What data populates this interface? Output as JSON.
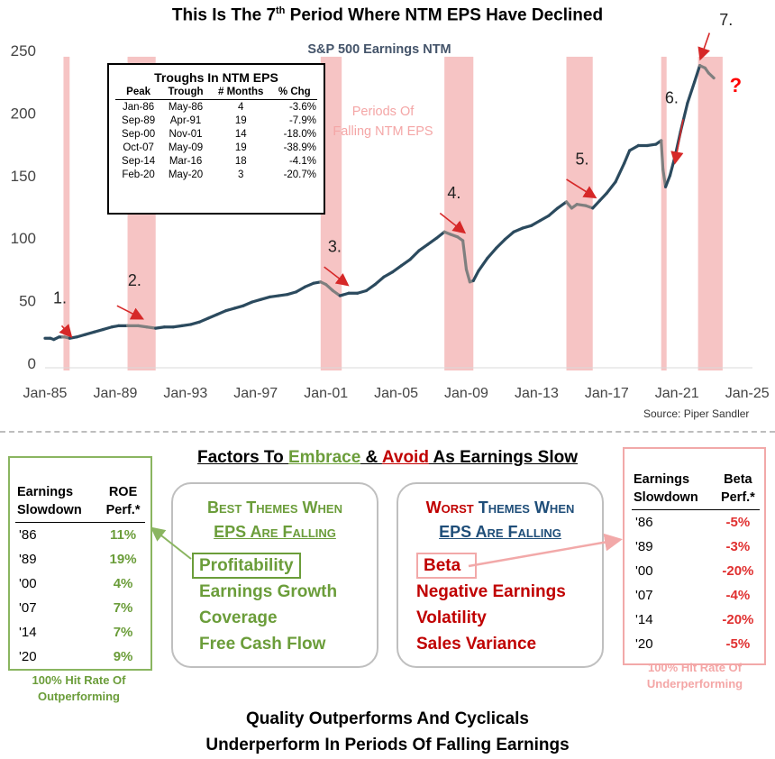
{
  "title_pre": "This Is The 7",
  "title_sup": "th",
  "title_post": " Period Where NTM EPS Have Declined",
  "chart_data": {
    "type": "line",
    "series_name": "S&P 500 Earnings NTM",
    "xlim": [
      1985.0,
      2025.3
    ],
    "ylim": [
      0,
      250
    ],
    "yticks": [
      0,
      50,
      100,
      150,
      200,
      250
    ],
    "xticks": [
      {
        "label": "Jan-85",
        "x": 1985
      },
      {
        "label": "Jan-89",
        "x": 1989
      },
      {
        "label": "Jan-93",
        "x": 1993
      },
      {
        "label": "Jan-97",
        "x": 1997
      },
      {
        "label": "Jan-01",
        "x": 2001
      },
      {
        "label": "Jan-05",
        "x": 2005
      },
      {
        "label": "Jan-09",
        "x": 2009
      },
      {
        "label": "Jan-13",
        "x": 2013
      },
      {
        "label": "Jan-17",
        "x": 2017
      },
      {
        "label": "Jan-21",
        "x": 2021
      },
      {
        "label": "Jan-25",
        "x": 2025
      }
    ],
    "shaded_periods": [
      [
        1986.05,
        1986.4
      ],
      [
        1989.7,
        1991.3
      ],
      [
        2000.7,
        2001.9
      ],
      [
        2007.75,
        2009.4
      ],
      [
        2014.7,
        2016.2
      ],
      [
        2020.1,
        2020.4
      ],
      [
        2022.2,
        2023.6
      ]
    ],
    "shade_label": "Periods Of Falling NTM EPS",
    "points": [
      [
        1985.0,
        20
      ],
      [
        1985.3,
        20
      ],
      [
        1985.5,
        19
      ],
      [
        1985.8,
        21
      ],
      [
        1986.0,
        21
      ],
      [
        1986.1,
        21
      ],
      [
        1986.4,
        20
      ],
      [
        1986.8,
        21
      ],
      [
        1987.3,
        23
      ],
      [
        1987.8,
        25
      ],
      [
        1988.3,
        27
      ],
      [
        1988.8,
        29
      ],
      [
        1989.2,
        30
      ],
      [
        1989.7,
        30
      ],
      [
        1990.3,
        30
      ],
      [
        1990.8,
        29
      ],
      [
        1991.3,
        28
      ],
      [
        1991.8,
        29
      ],
      [
        1992.3,
        29
      ],
      [
        1992.8,
        30
      ],
      [
        1993.3,
        31
      ],
      [
        1993.8,
        33
      ],
      [
        1994.3,
        36
      ],
      [
        1994.8,
        39
      ],
      [
        1995.3,
        42
      ],
      [
        1995.8,
        44
      ],
      [
        1996.3,
        46
      ],
      [
        1996.8,
        49
      ],
      [
        1997.3,
        51
      ],
      [
        1997.8,
        53
      ],
      [
        1998.3,
        54
      ],
      [
        1998.8,
        55
      ],
      [
        1999.3,
        57
      ],
      [
        1999.8,
        61
      ],
      [
        2000.3,
        64
      ],
      [
        2000.7,
        65
      ],
      [
        2001.0,
        63
      ],
      [
        2001.4,
        58
      ],
      [
        2001.8,
        54
      ],
      [
        2002.3,
        56
      ],
      [
        2002.8,
        56
      ],
      [
        2003.3,
        58
      ],
      [
        2003.8,
        63
      ],
      [
        2004.3,
        69
      ],
      [
        2004.8,
        73
      ],
      [
        2005.3,
        78
      ],
      [
        2005.8,
        83
      ],
      [
        2006.3,
        90
      ],
      [
        2006.8,
        95
      ],
      [
        2007.3,
        100
      ],
      [
        2007.75,
        105
      ],
      [
        2008.1,
        103
      ],
      [
        2008.5,
        101
      ],
      [
        2008.8,
        98
      ],
      [
        2009.0,
        75
      ],
      [
        2009.2,
        65
      ],
      [
        2009.4,
        66
      ],
      [
        2009.7,
        74
      ],
      [
        2010.2,
        84
      ],
      [
        2010.7,
        92
      ],
      [
        2011.2,
        99
      ],
      [
        2011.7,
        105
      ],
      [
        2012.2,
        108
      ],
      [
        2012.7,
        110
      ],
      [
        2013.2,
        114
      ],
      [
        2013.7,
        118
      ],
      [
        2014.2,
        124
      ],
      [
        2014.7,
        129
      ],
      [
        2015.0,
        124
      ],
      [
        2015.3,
        127
      ],
      [
        2015.8,
        126
      ],
      [
        2016.2,
        124
      ],
      [
        2016.6,
        130
      ],
      [
        2017.0,
        136
      ],
      [
        2017.5,
        145
      ],
      [
        2018.0,
        160
      ],
      [
        2018.3,
        170
      ],
      [
        2018.8,
        174
      ],
      [
        2019.3,
        174
      ],
      [
        2019.8,
        175
      ],
      [
        2020.1,
        178
      ],
      [
        2020.2,
        155
      ],
      [
        2020.35,
        141
      ],
      [
        2020.6,
        150
      ],
      [
        2020.9,
        166
      ],
      [
        2021.2,
        185
      ],
      [
        2021.6,
        208
      ],
      [
        2022.0,
        225
      ],
      [
        2022.3,
        238
      ],
      [
        2022.6,
        236
      ],
      [
        2022.8,
        232
      ],
      [
        2023.1,
        228
      ]
    ],
    "period_markers": [
      {
        "label": "1.",
        "x": 1985.85,
        "y": 48,
        "arrow_from": [
          1985.95,
          30
        ],
        "arrow_to": [
          1986.45,
          22
        ]
      },
      {
        "label": "2.",
        "x": 1990.1,
        "y": 62,
        "arrow_from": [
          1989.1,
          46
        ],
        "arrow_to": [
          1990.5,
          36
        ]
      },
      {
        "label": "3.",
        "x": 2001.5,
        "y": 89,
        "arrow_from": [
          2000.9,
          77
        ],
        "arrow_to": [
          2002.2,
          63
        ]
      },
      {
        "label": "4.",
        "x": 2008.3,
        "y": 132,
        "arrow_from": [
          2007.5,
          120
        ],
        "arrow_to": [
          2008.85,
          105
        ]
      },
      {
        "label": "5.",
        "x": 2015.6,
        "y": 159,
        "arrow_from": [
          2014.7,
          147
        ],
        "arrow_to": [
          2016.3,
          133
        ]
      },
      {
        "label": "6.",
        "x": 2020.7,
        "y": 208,
        "arrow_from": [
          2021.35,
          195
        ],
        "arrow_to": [
          2020.9,
          161
        ]
      },
      {
        "label": "7.",
        "x": 2023.8,
        "y": 270,
        "arrow_from": [
          2022.85,
          264
        ],
        "arrow_to": [
          2022.35,
          244
        ]
      }
    ],
    "question_mark": "?",
    "question_mark_pos": [
      2024.0,
      217
    ]
  },
  "source": "Source: Piper Sandler",
  "troughs": {
    "title": "Troughs In NTM EPS",
    "headers": [
      "Peak",
      "Trough",
      "# Months",
      "% Chg"
    ],
    "rows": [
      [
        "Jan-86",
        "May-86",
        "4",
        "-3.6%"
      ],
      [
        "Sep-89",
        "Apr-91",
        "19",
        "-7.9%"
      ],
      [
        "Sep-00",
        "Nov-01",
        "14",
        "-18.0%"
      ],
      [
        "Oct-07",
        "May-09",
        "19",
        "-38.9%"
      ],
      [
        "Sep-14",
        "Mar-16",
        "18",
        "-4.1%"
      ],
      [
        "Feb-20",
        "May-20",
        "3",
        "-20.7%"
      ]
    ]
  },
  "factors": {
    "title_part1": "Factors To ",
    "title_embrace": "Embrace",
    "title_part2": " & ",
    "title_avoid": "Avoid",
    "title_part3": " As Earnings Slow"
  },
  "roe_table": {
    "header_col1": [
      "Earnings",
      "Slowdown"
    ],
    "header_col2": [
      "ROE",
      "Perf.*"
    ],
    "rows": [
      [
        "'86",
        "11%"
      ],
      [
        "'89",
        "19%"
      ],
      [
        "'00",
        "4%"
      ],
      [
        "'07",
        "7%"
      ],
      [
        "'14",
        "7%"
      ],
      [
        "'20",
        "9%"
      ]
    ],
    "hit_rate_line1": "100% Hit Rate Of",
    "hit_rate_line2": "Outperforming"
  },
  "beta_table": {
    "header_col1": [
      "Earnings",
      "Slowdown"
    ],
    "header_col2": [
      "Beta",
      "Perf.*"
    ],
    "rows": [
      [
        "'86",
        "-5%"
      ],
      [
        "'89",
        "-3%"
      ],
      [
        "'00",
        "-20%"
      ],
      [
        "'07",
        "-4%"
      ],
      [
        "'14",
        "-20%"
      ],
      [
        "'20",
        "-5%"
      ]
    ],
    "hit_rate_line1": "100% Hit Rate Of",
    "hit_rate_line2": "Underperforming"
  },
  "best_themes": {
    "title_line1": "Best Themes When",
    "title_line2": "EPS Are Falling",
    "items": [
      "Profitability",
      "Earnings Growth",
      "Coverage",
      "Free Cash Flow"
    ]
  },
  "worst_themes": {
    "title_line1a": "Worst",
    "title_line1b": " Themes When",
    "title_line2": "EPS Are Falling",
    "items": [
      "Beta",
      "Negative Earnings",
      "Volatility",
      "Sales Variance"
    ]
  },
  "conclusion_line1": "Quality Outperforms And Cyclicals",
  "conclusion_line2": "Underperform In Periods Of Falling Earnings",
  "colors": {
    "line": "#2b4a5e",
    "line_falling": "#7f7f7f",
    "shade": "#f6c4c4",
    "arrow": "#d62828",
    "green": "#6b9d3a",
    "red": "#c00000",
    "blue_title": "#1f4e79"
  }
}
